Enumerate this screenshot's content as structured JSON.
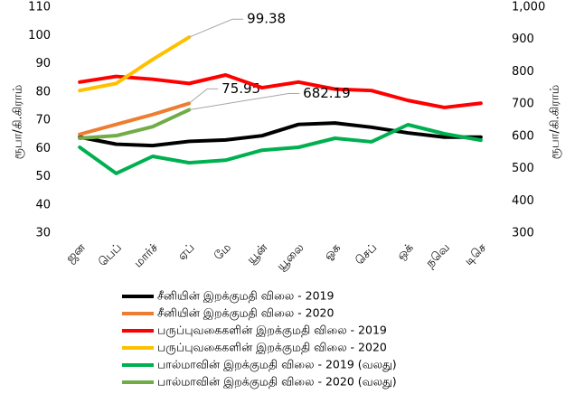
{
  "chart_data": {
    "type": "line",
    "y_label": "ரூபா/கி.கிராம்",
    "y2_label": "ரூபா/கி.கிராம்",
    "categories": [
      "ஜன",
      "பெப்",
      "மார்ச்",
      "ஏப்",
      "மே",
      "யூன்",
      "யூலை",
      "ஓக",
      "செப்",
      "ஒக்",
      "நவெ",
      "டிசெ"
    ],
    "ylim": [
      30,
      110
    ],
    "yticks": [
      30,
      40,
      50,
      60,
      70,
      80,
      90,
      100,
      110
    ],
    "y2lim": [
      300,
      1000
    ],
    "y2ticks": [
      300,
      400,
      500,
      600,
      700,
      800,
      900,
      {
        "value": 1000,
        "label": "1,000"
      }
    ],
    "legend": "bottom",
    "series": [
      {
        "name": "சீனியின் இறக்குமதி விலை - 2019",
        "color": "#000000",
        "values": [
          64,
          61.5,
          61,
          62.5,
          63,
          64.5,
          68.5,
          69,
          67.5,
          65.5,
          64,
          64
        ]
      },
      {
        "name": "சீனியின் இறக்குமதி விலை - 2020",
        "color": "#ed7d31",
        "values": [
          65,
          68.5,
          72,
          75.95,
          null,
          null,
          null,
          null,
          null,
          null,
          null,
          null
        ]
      },
      {
        "name": "பருப்புவகைகளின் இறக்குமதி விலை - 2019",
        "color": "#ff0000",
        "values": [
          83.5,
          85.5,
          84.5,
          83,
          86,
          81.5,
          83.5,
          81,
          80.5,
          77,
          74.5,
          76
        ]
      },
      {
        "name": "பருப்புவகைகளின் இறக்குமதி விலை - 2020",
        "color": "#ffc000",
        "values": [
          80.5,
          83,
          91.5,
          99.38,
          null,
          null,
          null,
          null,
          null,
          null,
          null,
          null
        ]
      },
      {
        "name": "பால்மாவின் இறக்குமதி விலை - 2019 (வலது)",
        "color": "#00b050",
        "axis": "y2",
        "values": [
          566,
          485,
          538,
          518,
          526,
          557,
          566,
          594,
          583,
          636,
          608,
          588
        ]
      },
      {
        "name": "பால்மாவின் இறக்குமதி விலை - 2020 (வலது)",
        "color": "#70ad47",
        "axis": "y2",
        "values": [
          594,
          602,
          630,
          682.19,
          null,
          null,
          null,
          null,
          null,
          null,
          null,
          null
        ]
      }
    ]
  }
}
